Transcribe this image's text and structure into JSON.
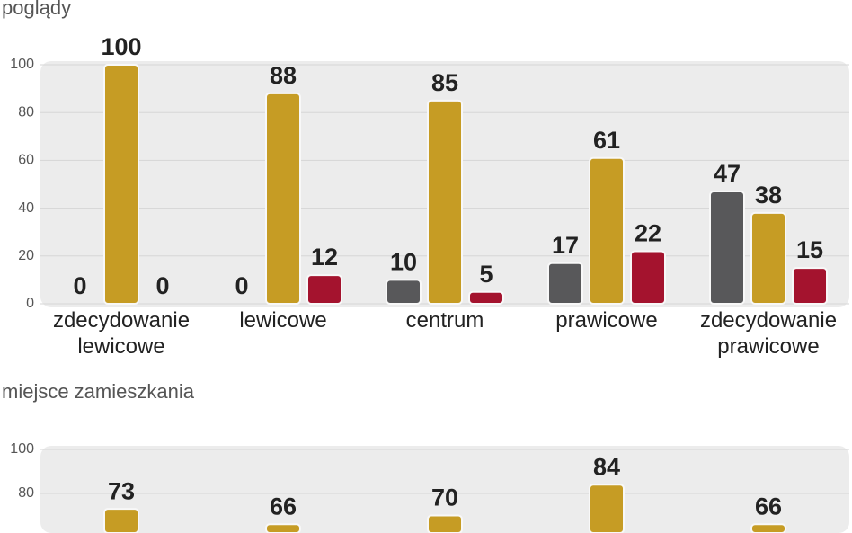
{
  "chart_data": [
    {
      "type": "bar",
      "title": "poglądy",
      "categories": [
        "zdecydowanie lewicowe",
        "lewicowe",
        "centrum",
        "prawicowe",
        "zdecydowanie prawicowe"
      ],
      "series": [
        {
          "color": "#58585a",
          "values": [
            0,
            0,
            10,
            17,
            47
          ]
        },
        {
          "color": "#c69c24",
          "values": [
            100,
            88,
            85,
            61,
            38
          ]
        },
        {
          "color": "#a4132e",
          "values": [
            0,
            12,
            5,
            22,
            15
          ]
        }
      ],
      "ylim": [
        0,
        100
      ],
      "yticks": [
        0,
        20,
        40,
        60,
        80,
        100
      ],
      "grid": true
    },
    {
      "type": "bar",
      "title": "miejsce zamieszkania",
      "categories": [
        null,
        null,
        null,
        null,
        null
      ],
      "series": [
        {
          "color": "#c69c24",
          "values": [
            73,
            66,
            70,
            84,
            66
          ]
        }
      ],
      "ylim": [
        0,
        100
      ],
      "yticks": [
        80,
        100
      ],
      "grid": true
    }
  ]
}
